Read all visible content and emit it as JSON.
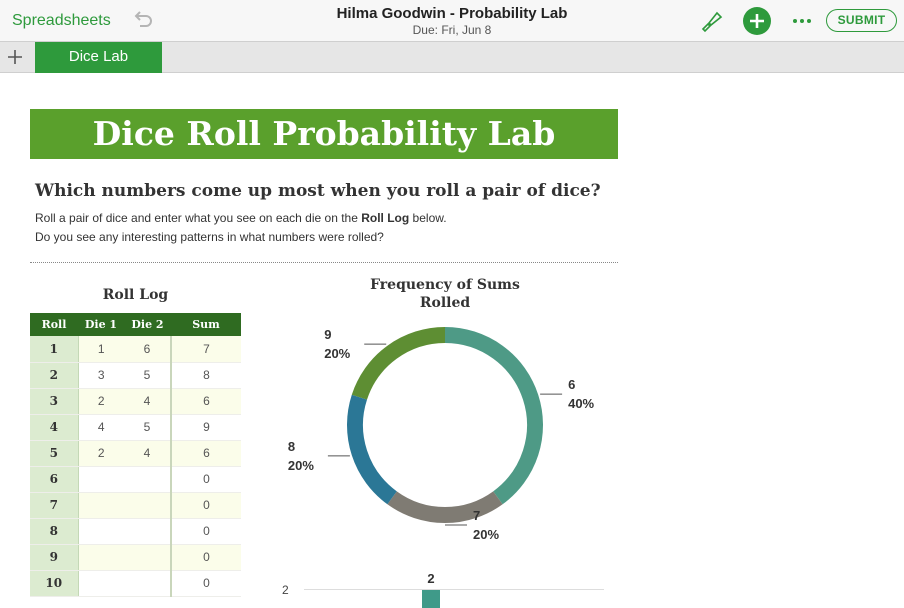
{
  "topbar": {
    "back_label": "Spreadsheets",
    "title": "Hilma Goodwin - Probability Lab",
    "due": "Due: Fri, Jun 8",
    "submit_label": "SUBMIT",
    "icons": [
      "undo-icon",
      "paintbrush-icon",
      "add-icon",
      "more-icon"
    ],
    "accent_color": "#2e9a3c"
  },
  "tabs": {
    "active": "Dice Lab"
  },
  "sheet": {
    "banner": "Dice Roll Probability Lab",
    "question": "Which numbers come up most when you roll a pair of dice?",
    "instr1_a": "Roll a pair of dice and enter what you see on each die on the ",
    "instr1_b": "Roll Log",
    "instr1_c": " below.",
    "instr2": "Do you see any interesting patterns in what numbers were rolled?"
  },
  "roll_log": {
    "title": "Roll Log",
    "headers": [
      "Roll",
      "Die 1",
      "Die 2",
      "Sum"
    ],
    "rows": [
      [
        "1",
        "1",
        "6",
        "7"
      ],
      [
        "2",
        "3",
        "5",
        "8"
      ],
      [
        "3",
        "2",
        "4",
        "6"
      ],
      [
        "4",
        "4",
        "5",
        "9"
      ],
      [
        "5",
        "2",
        "4",
        "6"
      ],
      [
        "6",
        "",
        "",
        "0"
      ],
      [
        "7",
        "",
        "",
        "0"
      ],
      [
        "8",
        "",
        "",
        "0"
      ],
      [
        "9",
        "",
        "",
        "0"
      ],
      [
        "10",
        "",
        "",
        "0"
      ]
    ]
  },
  "chart_data": [
    {
      "type": "pie",
      "donut": true,
      "title": "Frequency of Sums Rolled",
      "slices": [
        {
          "label": "6",
          "value": 40,
          "percent_label": "40%",
          "color": "#4e9a86"
        },
        {
          "label": "7",
          "value": 20,
          "percent_label": "20%",
          "color": "#7f7b73"
        },
        {
          "label": "8",
          "value": 20,
          "percent_label": "20%",
          "color": "#2b7796"
        },
        {
          "label": "9",
          "value": 20,
          "percent_label": "20%",
          "color": "#5e8e33"
        }
      ]
    },
    {
      "type": "bar",
      "y_tick_visible": "2",
      "visible_bar_label": "2",
      "bar_color": "#3f9a89"
    }
  ]
}
